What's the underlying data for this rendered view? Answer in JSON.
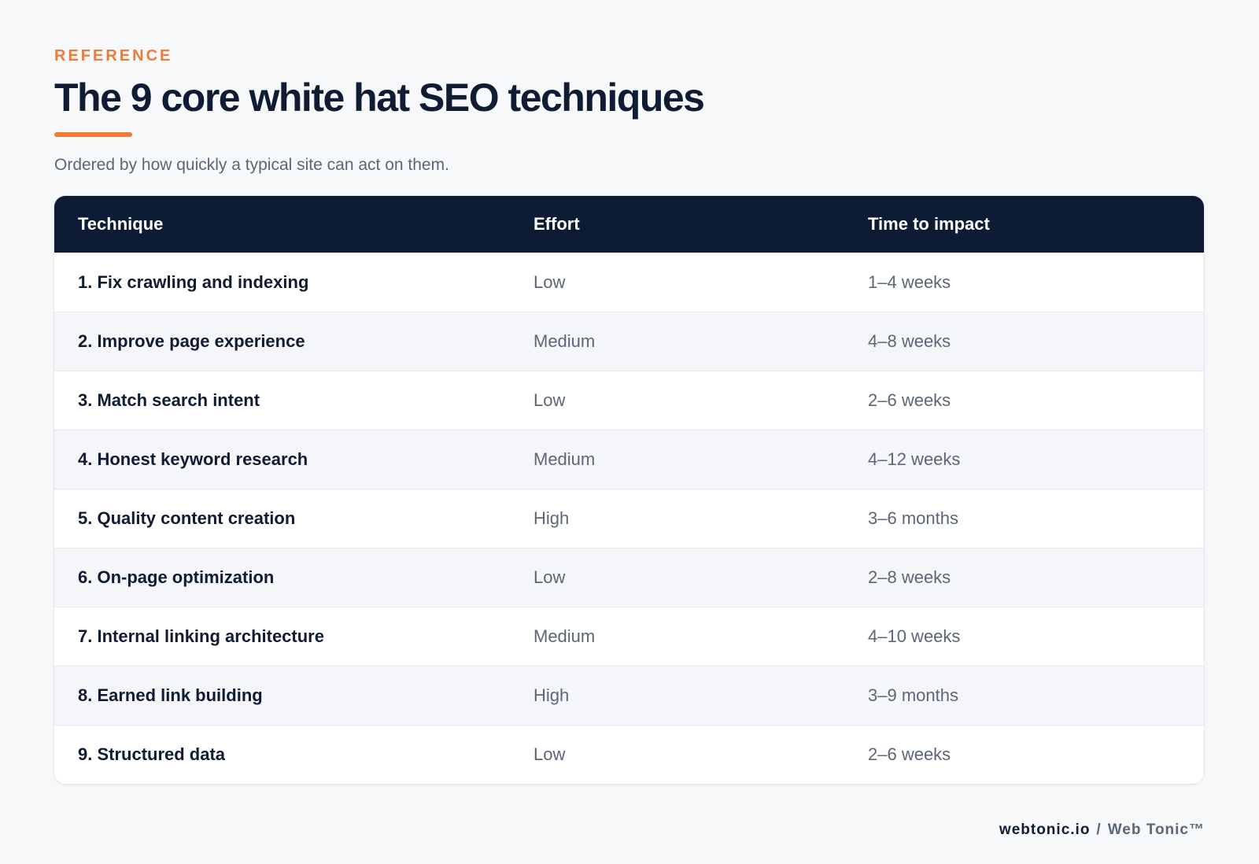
{
  "header": {
    "eyebrow": "REFERENCE",
    "title": "The 9 core white hat SEO techniques",
    "subtitle": "Ordered by how quickly a typical site can act on them."
  },
  "table": {
    "columns": [
      "Technique",
      "Effort",
      "Time to impact"
    ],
    "rows": [
      {
        "technique": "1. Fix crawling and indexing",
        "effort": "Low",
        "time": "1–4 weeks"
      },
      {
        "technique": "2. Improve page experience",
        "effort": "Medium",
        "time": "4–8 weeks"
      },
      {
        "technique": "3. Match search intent",
        "effort": "Low",
        "time": "2–6 weeks"
      },
      {
        "technique": "4. Honest keyword research",
        "effort": "Medium",
        "time": "4–12 weeks"
      },
      {
        "technique": "5. Quality content creation",
        "effort": "High",
        "time": "3–6 months"
      },
      {
        "technique": "6. On-page optimization",
        "effort": "Low",
        "time": "2–8 weeks"
      },
      {
        "technique": "7. Internal linking architecture",
        "effort": "Medium",
        "time": "4–10 weeks"
      },
      {
        "technique": "8. Earned link building",
        "effort": "High",
        "time": "3–9 months"
      },
      {
        "technique": "9. Structured data",
        "effort": "Low",
        "time": "2–6 weeks"
      }
    ]
  },
  "footer": {
    "domain": "webtonic.io",
    "separator": "/",
    "brand": "Web Tonic™"
  },
  "colors": {
    "accent": "#f07a38",
    "header_bg": "#0d1b34",
    "page_bg": "#f6f8fa",
    "text_dark": "#0f1c33",
    "text_muted": "#5b6676"
  }
}
